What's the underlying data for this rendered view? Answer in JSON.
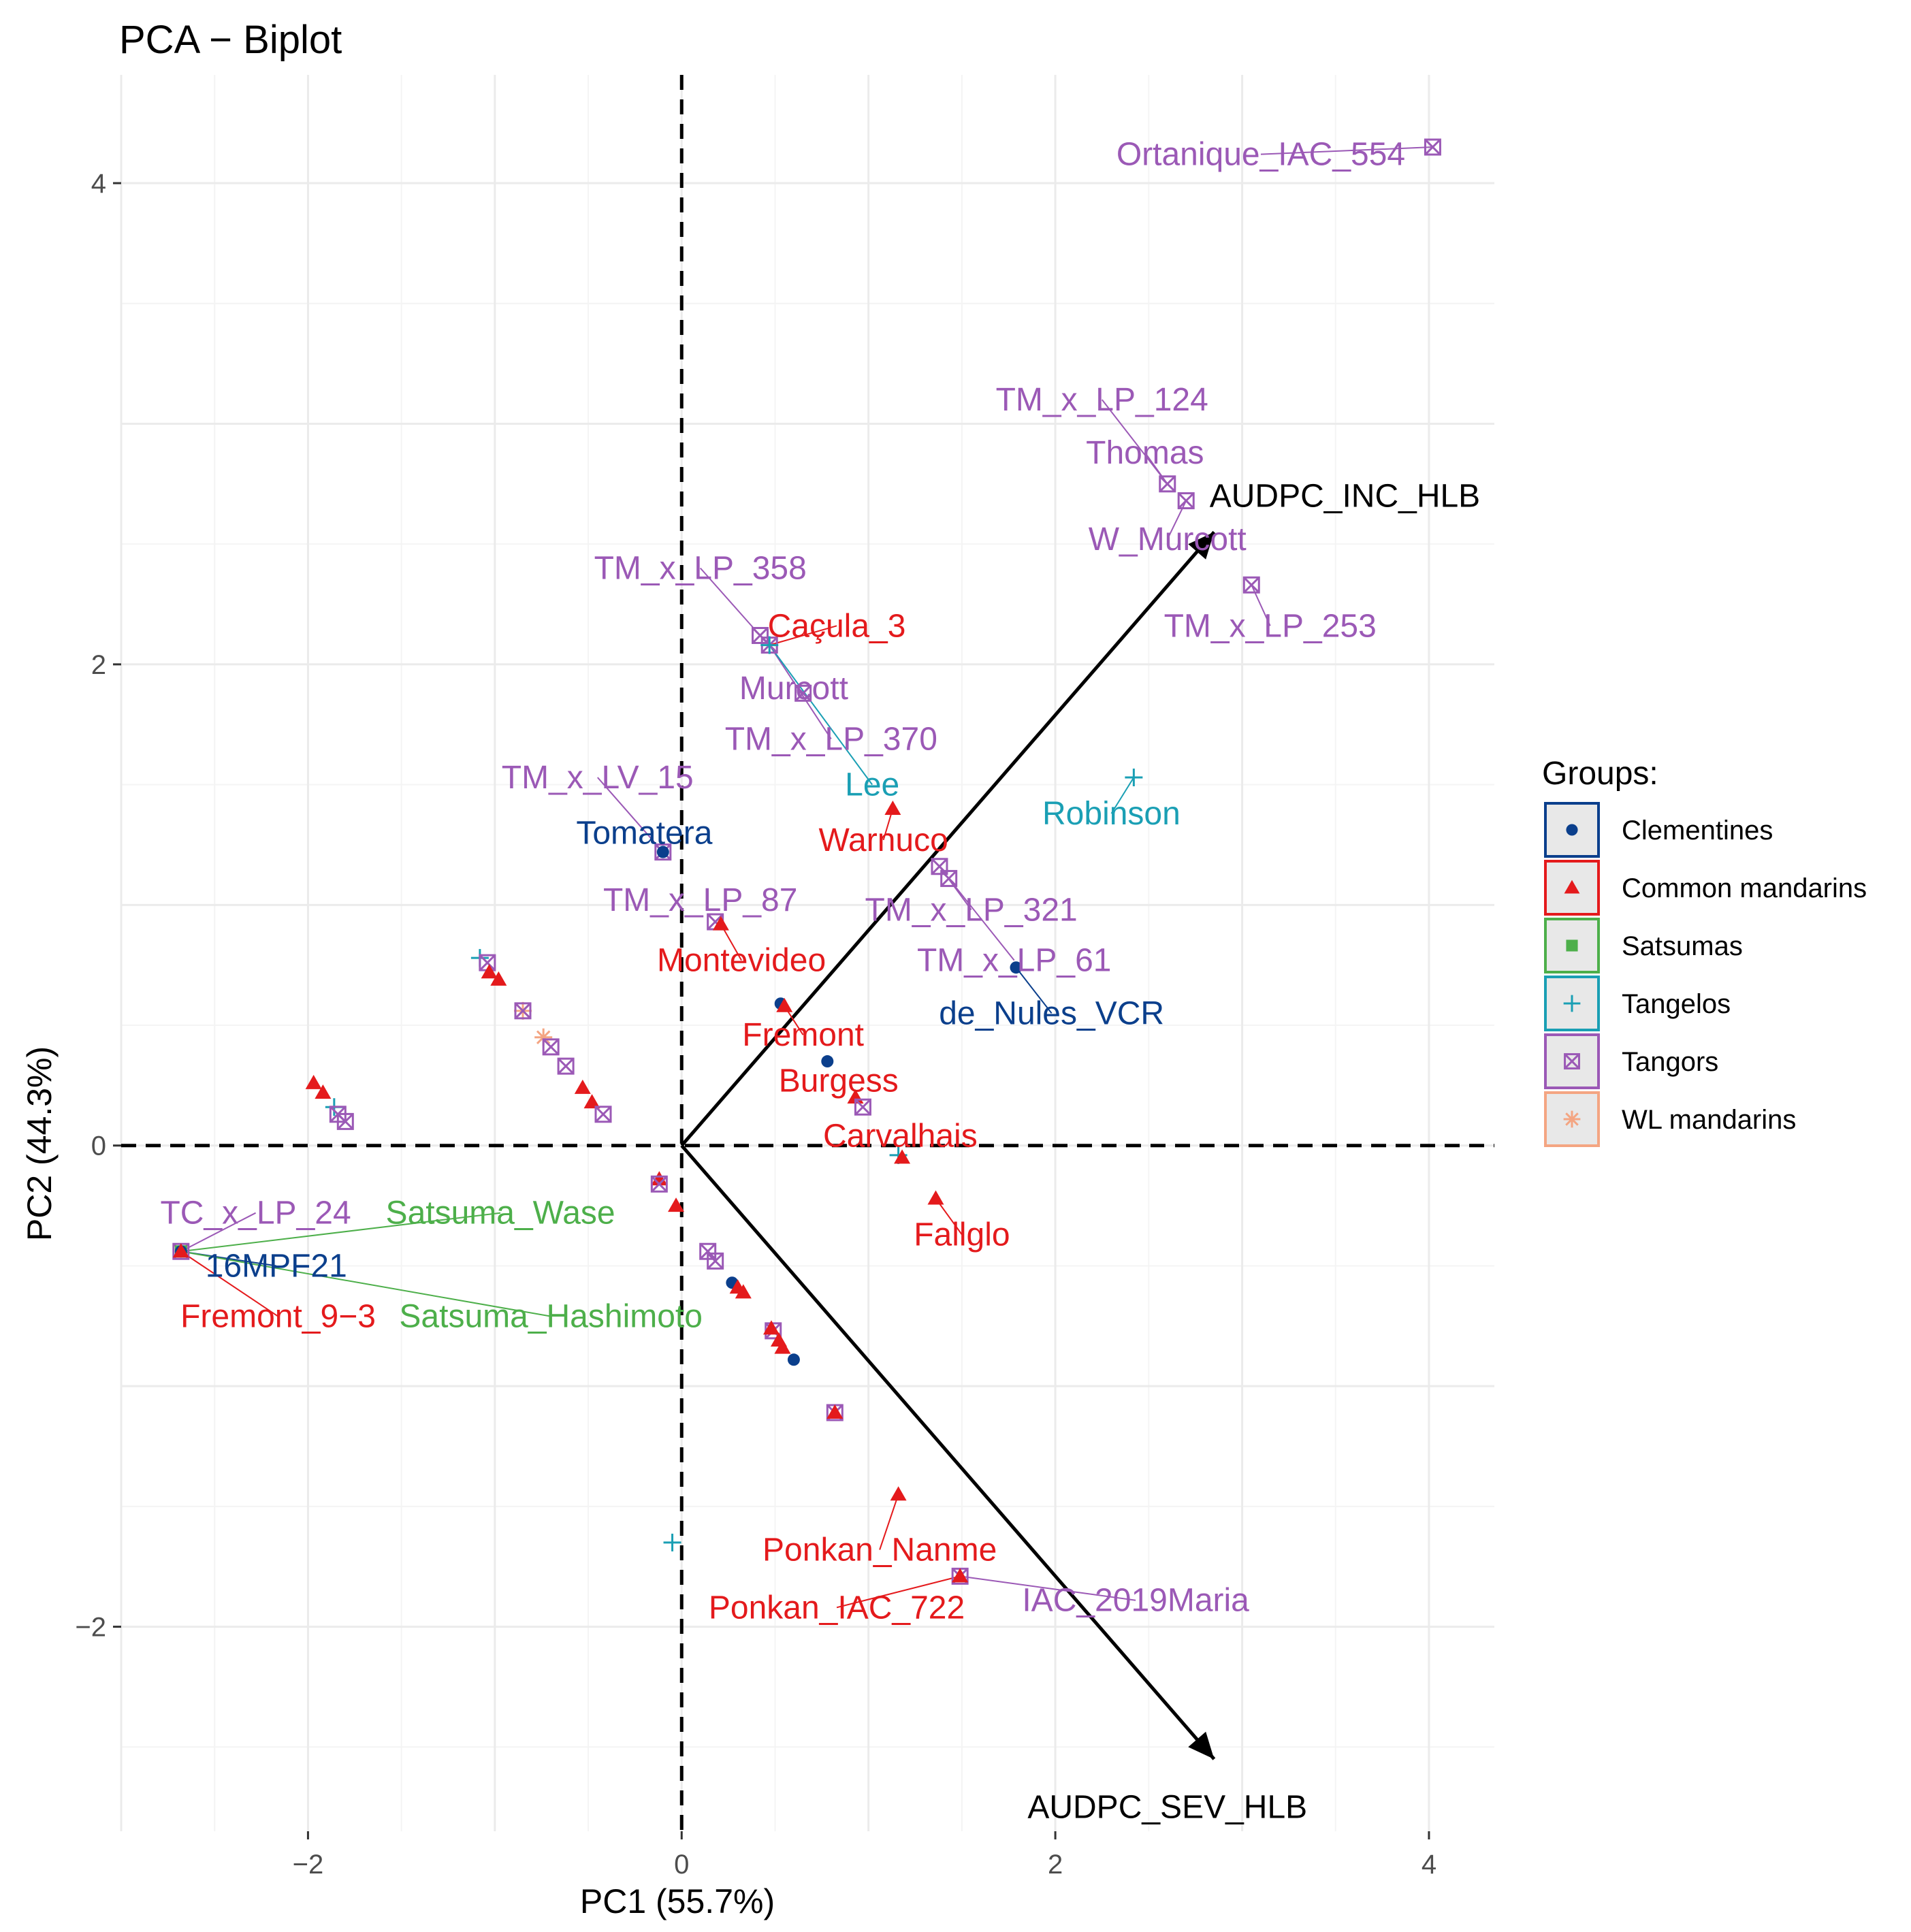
{
  "chart_data": {
    "type": "scatter",
    "subtype": "pca-biplot",
    "title": "PCA − Biplot",
    "xlabel": "PC1 (55.7%)",
    "ylabel": "PC2 (44.3%)",
    "xlim": [
      -3.0,
      4.35
    ],
    "ylim": [
      -2.85,
      4.45
    ],
    "xticks": [
      -2,
      0,
      2,
      4
    ],
    "xtick_labels": [
      "−2",
      "0",
      "2",
      "4"
    ],
    "yticks": [
      -2,
      0,
      2,
      4
    ],
    "ytick_labels": [
      "−2",
      "0",
      "2",
      "4"
    ],
    "grid": true,
    "reference_lines": [
      "x = 0 (dashed)",
      "y = 0 (dashed)"
    ],
    "legend": {
      "title": "Groups:",
      "position": "right",
      "items": [
        {
          "group": "Clementines",
          "label": "Clementines",
          "color": "#0b3f8c",
          "fill": "#e8e8e8",
          "shape": "circle"
        },
        {
          "group": "Common mandarins",
          "label": "Common mandarins",
          "color": "#e41a1c",
          "fill": "#e8e8e8",
          "shape": "triangle"
        },
        {
          "group": "Satsumas",
          "label": "Satsumas",
          "color": "#4daf4a",
          "fill": "#e8e8e8",
          "shape": "square"
        },
        {
          "group": "Tangelos",
          "label": "Tangelos",
          "color": "#1a9fb4",
          "fill": "#e8e8e8",
          "shape": "plus"
        },
        {
          "group": "Tangors",
          "label": "Tangors",
          "color": "#9b59b6",
          "fill": "#e8e8e8",
          "shape": "boxx"
        },
        {
          "group": "WL mandarins",
          "label": "WL mandarins",
          "color": "#f4a582",
          "fill": "#e8e8e8",
          "shape": "asterisk"
        }
      ]
    },
    "group_colors": {
      "Clementines": "#0b3f8c",
      "Common mandarins": "#e41a1c",
      "Satsumas": "#4daf4a",
      "Tangelos": "#1a9fb4",
      "Tangors": "#9b59b6",
      "WL mandarins": "#f4a582"
    },
    "variables": [
      {
        "name": "AUDPC_INC_HLB",
        "x": 2.85,
        "y": 2.55,
        "label": "AUDPC_INC_HLB",
        "label_x": 3.55,
        "label_y": 2.7
      },
      {
        "name": "AUDPC_SEV_HLB",
        "x": 2.85,
        "y": -2.55,
        "label": "AUDPC_SEV_HLB",
        "label_x": 2.6,
        "label_y": -2.75
      }
    ],
    "points": [
      {
        "group": "Tangors",
        "x": 4.02,
        "y": 4.15
      },
      {
        "group": "Tangors",
        "x": 2.6,
        "y": 2.75
      },
      {
        "group": "Tangors",
        "x": 2.7,
        "y": 2.68
      },
      {
        "group": "Tangors",
        "x": 3.05,
        "y": 2.33
      },
      {
        "group": "Tangors",
        "x": 0.42,
        "y": 2.12
      },
      {
        "group": "Tangors",
        "x": 0.47,
        "y": 2.08
      },
      {
        "group": "Tangelos",
        "x": 0.47,
        "y": 2.08
      },
      {
        "group": "Tangors",
        "x": 0.65,
        "y": 1.88
      },
      {
        "group": "Tangelos",
        "x": 2.42,
        "y": 1.53
      },
      {
        "group": "Common mandarins",
        "x": 1.13,
        "y": 1.4
      },
      {
        "group": "Tangors",
        "x": -0.1,
        "y": 1.22
      },
      {
        "group": "Clementines",
        "x": -0.1,
        "y": 1.22
      },
      {
        "group": "Tangors",
        "x": 1.38,
        "y": 1.16
      },
      {
        "group": "Tangors",
        "x": 1.43,
        "y": 1.11
      },
      {
        "group": "Tangors",
        "x": 0.18,
        "y": 0.93
      },
      {
        "group": "Common mandarins",
        "x": 0.21,
        "y": 0.92
      },
      {
        "group": "Clementines",
        "x": 1.79,
        "y": 0.74
      },
      {
        "group": "Tangelos",
        "x": -1.08,
        "y": 0.78
      },
      {
        "group": "Tangors",
        "x": -1.04,
        "y": 0.76
      },
      {
        "group": "Common mandarins",
        "x": -1.03,
        "y": 0.72
      },
      {
        "group": "Common mandarins",
        "x": -0.98,
        "y": 0.69
      },
      {
        "group": "WL mandarins",
        "x": -0.85,
        "y": 0.56
      },
      {
        "group": "Tangors",
        "x": -0.85,
        "y": 0.56
      },
      {
        "group": "Clementines",
        "x": 0.53,
        "y": 0.59
      },
      {
        "group": "Common mandarins",
        "x": 0.55,
        "y": 0.58
      },
      {
        "group": "WL mandarins",
        "x": -0.74,
        "y": 0.45
      },
      {
        "group": "Tangors",
        "x": -0.7,
        "y": 0.41
      },
      {
        "group": "Tangors",
        "x": -0.62,
        "y": 0.33
      },
      {
        "group": "Clementines",
        "x": 0.78,
        "y": 0.35
      },
      {
        "group": "Common mandarins",
        "x": -0.53,
        "y": 0.24
      },
      {
        "group": "Common mandarins",
        "x": -0.48,
        "y": 0.18
      },
      {
        "group": "Tangors",
        "x": -0.42,
        "y": 0.13
      },
      {
        "group": "Common mandarins",
        "x": 0.93,
        "y": 0.2
      },
      {
        "group": "Tangors",
        "x": 0.97,
        "y": 0.16
      },
      {
        "group": "Common mandarins",
        "x": -1.97,
        "y": 0.26
      },
      {
        "group": "Common mandarins",
        "x": -1.92,
        "y": 0.22
      },
      {
        "group": "Tangelos",
        "x": -1.86,
        "y": 0.16
      },
      {
        "group": "Tangors",
        "x": -1.84,
        "y": 0.13
      },
      {
        "group": "Tangors",
        "x": -1.8,
        "y": 0.1
      },
      {
        "group": "Tangelos",
        "x": 1.16,
        "y": -0.04
      },
      {
        "group": "Common mandarins",
        "x": 1.18,
        "y": -0.05
      },
      {
        "group": "Common mandarins",
        "x": 1.36,
        "y": -0.22
      },
      {
        "group": "Common mandarins",
        "x": -0.12,
        "y": -0.14
      },
      {
        "group": "Tangors",
        "x": -0.12,
        "y": -0.16
      },
      {
        "group": "Common mandarins",
        "x": -0.03,
        "y": -0.25
      },
      {
        "group": "Tangors",
        "x": 0.14,
        "y": -0.44
      },
      {
        "group": "Tangors",
        "x": 0.18,
        "y": -0.48
      },
      {
        "group": "Clementines",
        "x": 0.27,
        "y": -0.57
      },
      {
        "group": "Common mandarins",
        "x": 0.3,
        "y": -0.59
      },
      {
        "group": "Common mandarins",
        "x": 0.33,
        "y": -0.61
      },
      {
        "group": "Tangors",
        "x": -2.68,
        "y": -0.44
      },
      {
        "group": "Satsumas",
        "x": -2.68,
        "y": -0.44
      },
      {
        "group": "Clementines",
        "x": -2.68,
        "y": -0.44
      },
      {
        "group": "Common mandarins",
        "x": -2.68,
        "y": -0.44
      },
      {
        "group": "Tangors",
        "x": 0.49,
        "y": -0.77
      },
      {
        "group": "Common mandarins",
        "x": 0.48,
        "y": -0.76
      },
      {
        "group": "Common mandarins",
        "x": 0.52,
        "y": -0.81
      },
      {
        "group": "Common mandarins",
        "x": 0.54,
        "y": -0.84
      },
      {
        "group": "Clementines",
        "x": 0.6,
        "y": -0.89
      },
      {
        "group": "Tangors",
        "x": 0.82,
        "y": -1.11
      },
      {
        "group": "Common mandarins",
        "x": 0.82,
        "y": -1.11
      },
      {
        "group": "Common mandarins",
        "x": 1.16,
        "y": -1.45
      },
      {
        "group": "Tangelos",
        "x": -0.05,
        "y": -1.65
      },
      {
        "group": "Tangors",
        "x": 1.49,
        "y": -1.79
      },
      {
        "group": "Common mandarins",
        "x": 1.49,
        "y": -1.79
      }
    ],
    "labels": [
      {
        "text": "Ortanique_IAC_554",
        "group": "Tangors",
        "x": 3.1,
        "y": 4.12,
        "point_x": 4.02,
        "point_y": 4.15
      },
      {
        "text": "TM_x_LP_124",
        "group": "Tangors",
        "x": 2.25,
        "y": 3.1,
        "point_x": 2.6,
        "point_y": 2.75
      },
      {
        "text": "Thomas",
        "group": "Tangors",
        "x": 2.48,
        "y": 2.88,
        "point_x": 2.6,
        "point_y": 2.75
      },
      {
        "text": "W_Murcott",
        "group": "Tangors",
        "x": 2.6,
        "y": 2.52,
        "point_x": 2.7,
        "point_y": 2.68
      },
      {
        "text": "TM_x_LP_253",
        "group": "Tangors",
        "x": 3.15,
        "y": 2.16,
        "point_x": 3.05,
        "point_y": 2.33
      },
      {
        "text": "TM_x_LP_358",
        "group": "Tangors",
        "x": 0.1,
        "y": 2.4,
        "point_x": 0.42,
        "point_y": 2.12
      },
      {
        "text": "Caçula_3",
        "group": "Common mandarins",
        "x": 0.83,
        "y": 2.16,
        "point_x": 0.47,
        "point_y": 2.08
      },
      {
        "text": "Murcott",
        "group": "Tangors",
        "x": 0.6,
        "y": 1.9,
        "point_x": 0.65,
        "point_y": 1.88
      },
      {
        "text": "TM_x_LP_370",
        "group": "Tangors",
        "x": 0.8,
        "y": 1.69,
        "point_x": 0.47,
        "point_y": 2.08
      },
      {
        "text": "Lee",
        "group": "Tangelos",
        "x": 1.02,
        "y": 1.5,
        "point_x": 0.47,
        "point_y": 2.08
      },
      {
        "text": "Robinson",
        "group": "Tangelos",
        "x": 2.3,
        "y": 1.38,
        "point_x": 2.42,
        "point_y": 1.53
      },
      {
        "text": "TM_x_LV_15",
        "group": "Tangors",
        "x": -0.45,
        "y": 1.53,
        "point_x": -0.1,
        "point_y": 1.22
      },
      {
        "text": "Tomatera",
        "group": "Clementines",
        "x": -0.2,
        "y": 1.3,
        "point_x": -0.1,
        "point_y": 1.22
      },
      {
        "text": "Warnuco",
        "group": "Common mandarins",
        "x": 1.08,
        "y": 1.27,
        "point_x": 1.13,
        "point_y": 1.4
      },
      {
        "text": "TM_x_LP_87",
        "group": "Tangors",
        "x": 0.1,
        "y": 1.02,
        "point_x": 0.18,
        "point_y": 0.93
      },
      {
        "text": "TM_x_LP_321",
        "group": "Tangors",
        "x": 1.55,
        "y": 0.98,
        "point_x": 1.38,
        "point_y": 1.16
      },
      {
        "text": "Montevideo",
        "group": "Common mandarins",
        "x": 0.32,
        "y": 0.77,
        "point_x": 0.21,
        "point_y": 0.92
      },
      {
        "text": "TM_x_LP_61",
        "group": "Tangors",
        "x": 1.78,
        "y": 0.77,
        "point_x": 1.43,
        "point_y": 1.11
      },
      {
        "text": "de_Nules_VCR",
        "group": "Clementines",
        "x": 1.98,
        "y": 0.55,
        "point_x": 1.79,
        "point_y": 0.74
      },
      {
        "text": "Fremont",
        "group": "Common mandarins",
        "x": 0.65,
        "y": 0.46,
        "point_x": 0.55,
        "point_y": 0.58
      },
      {
        "text": "Burgess",
        "group": "Common mandarins",
        "x": 0.84,
        "y": 0.27,
        "point_x": 0.93,
        "point_y": 0.2
      },
      {
        "text": "Carvalhais",
        "group": "Common mandarins",
        "x": 1.17,
        "y": 0.04,
        "point_x": 1.18,
        "point_y": -0.05
      },
      {
        "text": "Fallglo",
        "group": "Common mandarins",
        "x": 1.5,
        "y": -0.37,
        "point_x": 1.36,
        "point_y": -0.22
      },
      {
        "text": "TC_x_LP_24",
        "group": "Tangors",
        "x": -2.28,
        "y": -0.28,
        "point_x": -2.68,
        "point_y": -0.44
      },
      {
        "text": "Satsuma_Wase",
        "group": "Satsumas",
        "x": -0.97,
        "y": -0.28,
        "point_x": -2.68,
        "point_y": -0.44
      },
      {
        "text": "16MPF21",
        "group": "Clementines",
        "x": -2.17,
        "y": -0.5,
        "point_x": -2.68,
        "point_y": -0.44
      },
      {
        "text": "Fremont_9−3",
        "group": "Common mandarins",
        "x": -2.16,
        "y": -0.71,
        "point_x": -2.68,
        "point_y": -0.44
      },
      {
        "text": "Satsuma_Hashimoto",
        "group": "Satsumas",
        "x": -0.7,
        "y": -0.71,
        "point_x": -2.68,
        "point_y": -0.44
      },
      {
        "text": "Ponkan_Nanme",
        "group": "Common mandarins",
        "x": 1.06,
        "y": -1.68,
        "point_x": 1.16,
        "point_y": -1.45
      },
      {
        "text": "IAC_2019Maria",
        "group": "Tangors",
        "x": 2.43,
        "y": -1.89,
        "point_x": 1.49,
        "point_y": -1.79
      },
      {
        "text": "Ponkan_IAC_722",
        "group": "Common mandarins",
        "x": 0.83,
        "y": -1.92,
        "point_x": 1.49,
        "point_y": -1.79
      }
    ]
  }
}
